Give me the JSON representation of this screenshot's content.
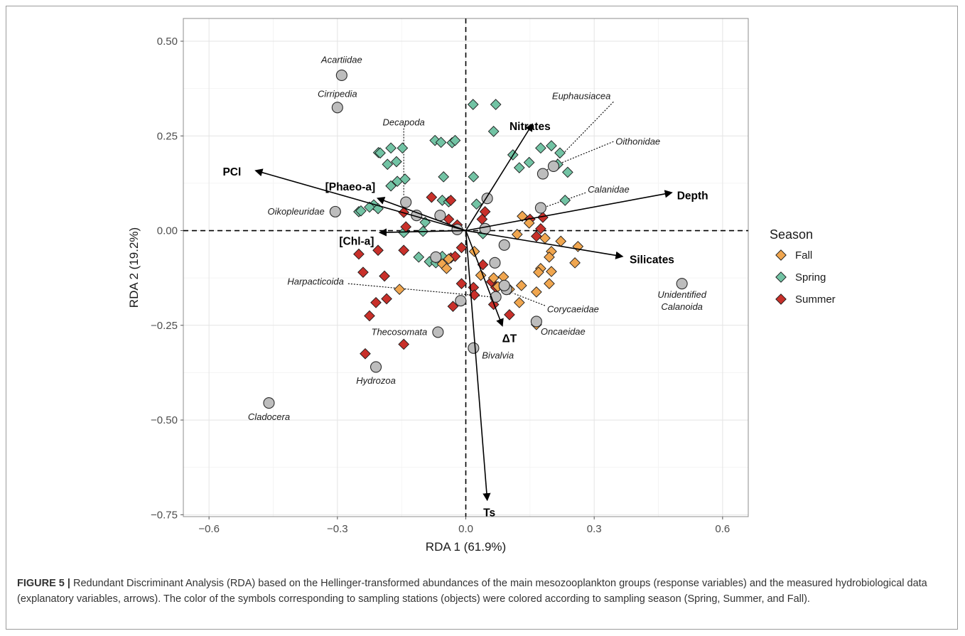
{
  "chart_data": {
    "type": "scatter",
    "xlabel": "RDA 1 (61.9%)",
    "ylabel": "RDA 2 (19.2%)",
    "xlim": [
      -0.66,
      0.66
    ],
    "ylim": [
      -0.755,
      0.56
    ],
    "x_ticks": [
      -0.6,
      -0.3,
      0.0,
      0.3,
      0.6
    ],
    "x_tick_labels": [
      "−0.6",
      "−0.3",
      "0.0",
      "0.3",
      "0.6"
    ],
    "y_ticks": [
      0.5,
      0.25,
      0.0,
      -0.25,
      -0.5,
      -0.75
    ],
    "y_tick_labels": [
      "0.50",
      "0.25",
      "0.00",
      "−0.25",
      "−0.50",
      "−0.75"
    ],
    "grid": true,
    "legend_position": "right",
    "legend": {
      "title": "Season",
      "entries": [
        {
          "name": "Fall",
          "color": "#f0a64f"
        },
        {
          "name": "Spring",
          "color": "#72c3a4"
        },
        {
          "name": "Summer",
          "color": "#c8302a"
        }
      ]
    },
    "species_points": [
      {
        "name": "Acartiidae",
        "x": -0.29,
        "y": 0.41,
        "label": "Acartiidae",
        "lx": -0.29,
        "ly": 0.45,
        "anchor": "middle"
      },
      {
        "name": "Cirripedia",
        "x": -0.3,
        "y": 0.325,
        "label": "Cirripedia",
        "lx": -0.3,
        "ly": 0.36,
        "anchor": "middle"
      },
      {
        "name": "Decapoda",
        "x": -0.14,
        "y": 0.075,
        "label": "Decapoda",
        "lx": -0.145,
        "ly": 0.285,
        "anchor": "middle",
        "leader": [
          -0.145,
          0.27,
          -0.145,
          0.09
        ]
      },
      {
        "name": "Oikopleuridae",
        "x": -0.305,
        "y": 0.05,
        "label": "Oikopleuridae",
        "lx": -0.33,
        "ly": 0.05,
        "anchor": "end"
      },
      {
        "name": "Harpacticoida",
        "x": 0.07,
        "y": -0.175,
        "label": "Harpacticoida",
        "lx": -0.285,
        "ly": -0.135,
        "anchor": "end",
        "leader": [
          -0.275,
          -0.14,
          0.06,
          -0.175
        ]
      },
      {
        "name": "Thecosomata",
        "x": -0.065,
        "y": -0.268,
        "label": "Thecosomata",
        "lx": -0.09,
        "ly": -0.268,
        "anchor": "end"
      },
      {
        "name": "Hydrozoa",
        "x": -0.21,
        "y": -0.36,
        "label": "Hydrozoa",
        "lx": -0.21,
        "ly": -0.397,
        "anchor": "middle"
      },
      {
        "name": "Cladocera",
        "x": -0.46,
        "y": -0.455,
        "label": "Cladocera",
        "lx": -0.46,
        "ly": -0.492,
        "anchor": "middle"
      },
      {
        "name": "Bivalvia",
        "x": 0.018,
        "y": -0.31,
        "label": "Bivalvia",
        "lx": 0.075,
        "ly": -0.33,
        "anchor": "middle"
      },
      {
        "name": "Oncaeidae",
        "x": 0.165,
        "y": -0.24,
        "label": "Oncaeidae",
        "lx": 0.175,
        "ly": -0.267,
        "anchor": "start"
      },
      {
        "name": "Corycaeidae",
        "x": 0.095,
        "y": -0.155,
        "label": "Corycaeidae",
        "lx": 0.19,
        "ly": -0.208,
        "anchor": "start",
        "leader": [
          0.185,
          -0.198,
          0.11,
          -0.165
        ]
      },
      {
        "name": "Unidentified Calanoida",
        "x": 0.505,
        "y": -0.14,
        "label": "Unidentified",
        "label2": "Calanoida",
        "lx": 0.505,
        "ly": -0.17,
        "anchor": "middle"
      },
      {
        "name": "Euphausiacea",
        "x": 0.18,
        "y": 0.15,
        "label": "Euphausiacea",
        "lx": 0.27,
        "ly": 0.355,
        "anchor": "middle",
        "leader": [
          0.345,
          0.34,
          0.19,
          0.16
        ]
      },
      {
        "name": "Oithonidae",
        "x": 0.205,
        "y": 0.17,
        "label": "Oithonidae",
        "lx": 0.35,
        "ly": 0.235,
        "anchor": "start",
        "leader": [
          0.345,
          0.235,
          0.215,
          0.175
        ]
      },
      {
        "name": "Calanidae",
        "x": 0.175,
        "y": 0.06,
        "label": "Calanidae",
        "lx": 0.285,
        "ly": 0.108,
        "anchor": "start",
        "leader": [
          0.28,
          0.1,
          0.185,
          0.062
        ]
      },
      {
        "name": "unlabeled-1",
        "x": 0.05,
        "y": 0.085
      },
      {
        "name": "unlabeled-2",
        "x": -0.115,
        "y": 0.04
      },
      {
        "name": "unlabeled-3",
        "x": -0.06,
        "y": 0.04
      },
      {
        "name": "unlabeled-4",
        "x": -0.02,
        "y": 0.003
      },
      {
        "name": "unlabeled-5",
        "x": 0.045,
        "y": 0.005
      },
      {
        "name": "unlabeled-6",
        "x": 0.09,
        "y": -0.038
      },
      {
        "name": "unlabeled-7",
        "x": 0.068,
        "y": -0.085
      },
      {
        "name": "unlabeled-8",
        "x": -0.07,
        "y": -0.07
      },
      {
        "name": "unlabeled-9",
        "x": -0.012,
        "y": -0.185
      },
      {
        "name": "unlabeled-10",
        "x": 0.09,
        "y": -0.145
      }
    ],
    "series": [
      {
        "name": "Spring",
        "color": "#72c3a4",
        "points": [
          [
            0.017,
            0.333
          ],
          [
            0.07,
            0.333
          ],
          [
            -0.204,
            0.206
          ],
          [
            -0.175,
            0.218
          ],
          [
            -0.2,
            0.205
          ],
          [
            -0.148,
            0.218
          ],
          [
            -0.072,
            0.238
          ],
          [
            -0.058,
            0.233
          ],
          [
            -0.032,
            0.232
          ],
          [
            -0.025,
            0.238
          ],
          [
            0.065,
            0.262
          ],
          [
            0.11,
            0.2
          ],
          [
            0.125,
            0.166
          ],
          [
            0.148,
            0.18
          ],
          [
            0.175,
            0.218
          ],
          [
            0.2,
            0.224
          ],
          [
            0.22,
            0.205
          ],
          [
            0.215,
            0.175
          ],
          [
            0.238,
            0.154
          ],
          [
            -0.183,
            0.175
          ],
          [
            -0.162,
            0.182
          ],
          [
            -0.16,
            0.13
          ],
          [
            -0.142,
            0.136
          ],
          [
            -0.175,
            0.118
          ],
          [
            -0.25,
            0.05
          ],
          [
            -0.215,
            0.068
          ],
          [
            -0.225,
            0.062
          ],
          [
            -0.205,
            0.058
          ],
          [
            -0.245,
            0.052
          ],
          [
            -0.052,
            0.142
          ],
          [
            0.018,
            0.142
          ],
          [
            0.232,
            0.08
          ],
          [
            -0.055,
            0.08
          ],
          [
            -0.04,
            0.076
          ],
          [
            0.025,
            0.07
          ],
          [
            -0.145,
            -0.005
          ],
          [
            -0.095,
            0.022
          ],
          [
            -0.1,
            -0.002
          ],
          [
            0.04,
            -0.008
          ],
          [
            -0.11,
            -0.07
          ],
          [
            -0.085,
            -0.082
          ],
          [
            -0.07,
            -0.085
          ],
          [
            -0.06,
            -0.075
          ],
          [
            -0.055,
            -0.068
          ]
        ]
      },
      {
        "name": "Summer",
        "color": "#c8302a",
        "points": [
          [
            -0.08,
            0.088
          ],
          [
            -0.035,
            0.08
          ],
          [
            -0.145,
            0.048
          ],
          [
            0.045,
            0.05
          ],
          [
            0.038,
            0.03
          ],
          [
            0.15,
            0.03
          ],
          [
            0.175,
            0.005
          ],
          [
            0.18,
            0.035
          ],
          [
            0.165,
            -0.015
          ],
          [
            -0.14,
            0.01
          ],
          [
            -0.04,
            0.03
          ],
          [
            -0.02,
            0.015
          ],
          [
            -0.01,
            -0.045
          ],
          [
            -0.145,
            -0.052
          ],
          [
            -0.205,
            -0.052
          ],
          [
            -0.25,
            -0.062
          ],
          [
            -0.035,
            -0.072
          ],
          [
            -0.025,
            -0.068
          ],
          [
            0.04,
            -0.09
          ],
          [
            -0.24,
            -0.11
          ],
          [
            -0.19,
            -0.12
          ],
          [
            -0.01,
            -0.14
          ],
          [
            0.018,
            -0.15
          ],
          [
            0.06,
            -0.135
          ],
          [
            0.07,
            -0.15
          ],
          [
            -0.21,
            -0.19
          ],
          [
            -0.185,
            -0.18
          ],
          [
            0.02,
            -0.17
          ],
          [
            -0.03,
            -0.2
          ],
          [
            0.065,
            -0.195
          ],
          [
            -0.225,
            -0.225
          ],
          [
            0.102,
            -0.222
          ],
          [
            -0.235,
            -0.325
          ],
          [
            -0.145,
            -0.3
          ]
        ]
      },
      {
        "name": "Fall",
        "color": "#f0a64f",
        "points": [
          [
            0.132,
            0.038
          ],
          [
            0.148,
            0.02
          ],
          [
            0.12,
            -0.01
          ],
          [
            0.185,
            -0.02
          ],
          [
            0.222,
            -0.028
          ],
          [
            0.262,
            -0.042
          ],
          [
            0.2,
            -0.055
          ],
          [
            0.195,
            -0.07
          ],
          [
            0.255,
            -0.085
          ],
          [
            0.02,
            -0.055
          ],
          [
            0.175,
            -0.1
          ],
          [
            0.17,
            -0.11
          ],
          [
            0.2,
            -0.108
          ],
          [
            0.195,
            -0.14
          ],
          [
            0.035,
            -0.118
          ],
          [
            0.065,
            -0.125
          ],
          [
            0.088,
            -0.122
          ],
          [
            0.075,
            -0.148
          ],
          [
            0.09,
            -0.152
          ],
          [
            0.102,
            -0.155
          ],
          [
            0.13,
            -0.145
          ],
          [
            0.165,
            -0.162
          ],
          [
            0.125,
            -0.19
          ],
          [
            0.165,
            -0.248
          ],
          [
            -0.07,
            -0.072
          ],
          [
            -0.055,
            -0.088
          ],
          [
            -0.045,
            -0.1
          ],
          [
            -0.155,
            -0.155
          ],
          [
            -0.04,
            -0.075
          ]
        ]
      }
    ],
    "vectors": [
      {
        "name": "PCl",
        "x": -0.49,
        "y": 0.158,
        "label": "PCl",
        "lx": -0.525,
        "ly": 0.155,
        "anchor": "end"
      },
      {
        "name": "[Phaeo-a]",
        "x": -0.205,
        "y": 0.085,
        "label": "[Phaeo-a]",
        "lx": -0.27,
        "ly": 0.115,
        "anchor": "middle"
      },
      {
        "name": "[Chl-a]",
        "x": -0.2,
        "y": -0.005,
        "label": "[Chl-a]",
        "lx": -0.255,
        "ly": -0.028,
        "anchor": "middle"
      },
      {
        "name": "Nitrates",
        "x": 0.155,
        "y": 0.28,
        "label": "Nitrates",
        "lx": 0.15,
        "ly": 0.275,
        "anchor": "middle"
      },
      {
        "name": "Depth",
        "x": 0.48,
        "y": 0.1,
        "label": "Depth",
        "lx": 0.53,
        "ly": 0.092,
        "anchor": "middle"
      },
      {
        "name": "Silicates",
        "x": 0.365,
        "y": -0.068,
        "label": "Silicates",
        "lx": 0.435,
        "ly": -0.077,
        "anchor": "middle"
      },
      {
        "name": "ΔT",
        "x": 0.085,
        "y": -0.25,
        "label": "ΔT",
        "lx": 0.102,
        "ly": -0.285,
        "anchor": "middle"
      },
      {
        "name": "Ts",
        "x": 0.05,
        "y": -0.71,
        "label": "Ts",
        "lx": 0.055,
        "ly": -0.745,
        "anchor": "middle"
      }
    ]
  },
  "caption": {
    "label": "FIGURE 5 |",
    "text": " Redundant Discriminant Analysis (RDA) based on the Hellinger-transformed abundances of the main mesozooplankton groups (response variables) and the measured hydrobiological data (explanatory variables, arrows). The color of the symbols corresponding to sampling stations (objects) were colored according to sampling season (Spring, Summer, and Fall)."
  }
}
